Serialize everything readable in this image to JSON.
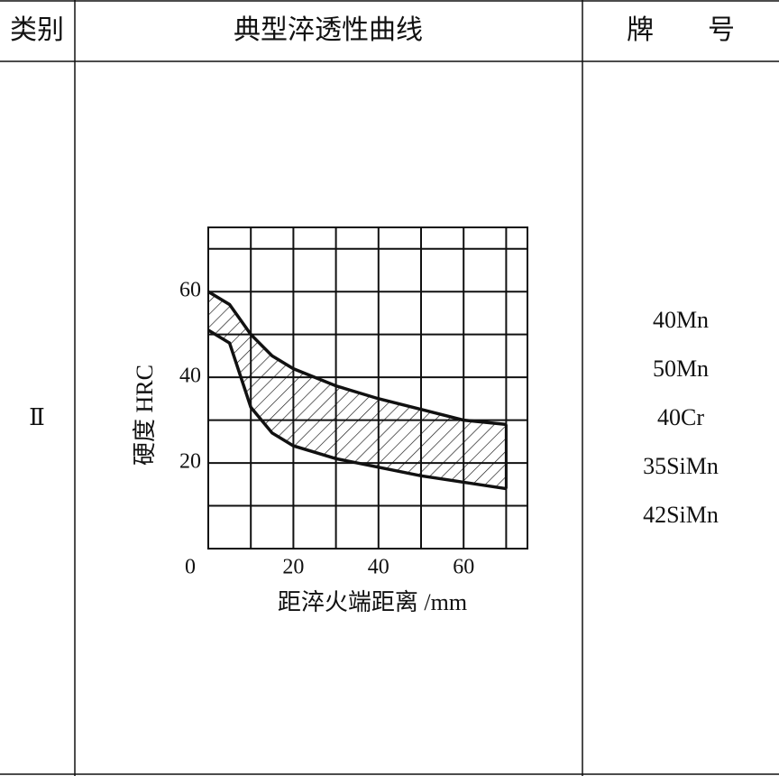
{
  "table": {
    "headers": [
      "类别",
      "典型淬透性曲线",
      "牌　　号"
    ],
    "rows": [
      {
        "category": "Ⅱ",
        "grades": [
          "40Mn",
          "50Mn",
          "40Cr",
          "35SiMn",
          "42SiMn"
        ]
      }
    ]
  },
  "chart_data": {
    "type": "line",
    "x_label": "距淬火端距离 /mm",
    "y_label": "硬度 HRC",
    "x": [
      0,
      5,
      10,
      15,
      20,
      25,
      30,
      40,
      50,
      60,
      70
    ],
    "series": [
      {
        "color": "#111111",
        "values": [
          60,
          57,
          50,
          45,
          42,
          40,
          38,
          35,
          32.5,
          30,
          29
        ]
      },
      {
        "color": "#111111",
        "values": [
          51,
          48,
          33,
          27,
          24,
          22.5,
          21,
          19,
          17,
          15.5,
          14
        ]
      }
    ],
    "xlim": [
      0,
      75
    ],
    "ylim": [
      0,
      75
    ],
    "xticks": [
      0,
      20,
      40,
      60
    ],
    "yticks": [
      20,
      40,
      60
    ],
    "xgrid": [
      0,
      10,
      20,
      30,
      40,
      50,
      60,
      70
    ],
    "ygrid": [
      0,
      10,
      20,
      30,
      40,
      50,
      60,
      70
    ],
    "grid": true
  }
}
